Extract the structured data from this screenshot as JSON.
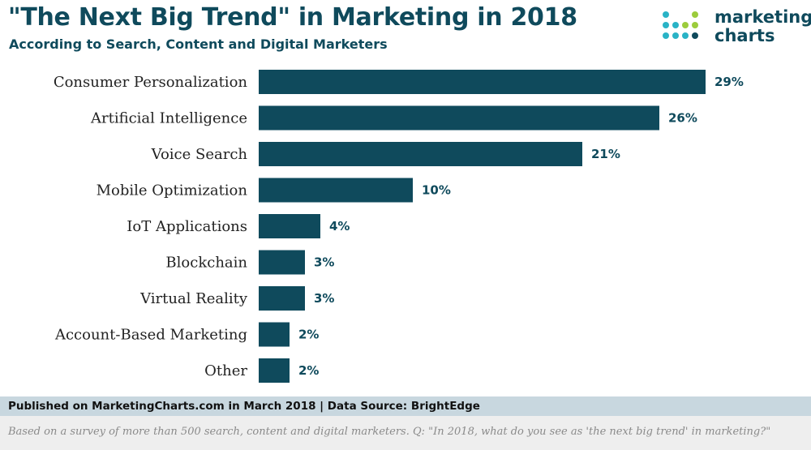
{
  "header": {
    "title": "\"The Next Big Trend\" in Marketing in 2018",
    "subtitle": "According to Search, Content and Digital Marketers"
  },
  "logo": {
    "line1": "marketing",
    "line2": "charts",
    "dot_colors": [
      "#2ab3c6",
      "#9ccc3c",
      "#0f4a5c"
    ]
  },
  "chart_data": {
    "type": "bar",
    "orientation": "horizontal",
    "categories": [
      "Consumer Personalization",
      "Artificial Intelligence",
      "Voice Search",
      "Mobile Optimization",
      "IoT Applications",
      "Blockchain",
      "Virtual Reality",
      "Account-Based Marketing",
      "Other"
    ],
    "values": [
      29,
      26,
      21,
      10,
      4,
      3,
      3,
      2,
      2
    ],
    "value_labels": [
      "29%",
      "26%",
      "21%",
      "10%",
      "4%",
      "3%",
      "3%",
      "2%",
      "2%"
    ],
    "unit": "%",
    "bar_color": "#0f4a5c",
    "grid": false
  },
  "footer": {
    "published": "Published on MarketingCharts.com in March 2018 | Data Source: BrightEdge",
    "note": "Based on a survey of more than 500 search, content and digital marketers. Q: \"In 2018, what do you see as 'the next big trend' in marketing?\""
  }
}
